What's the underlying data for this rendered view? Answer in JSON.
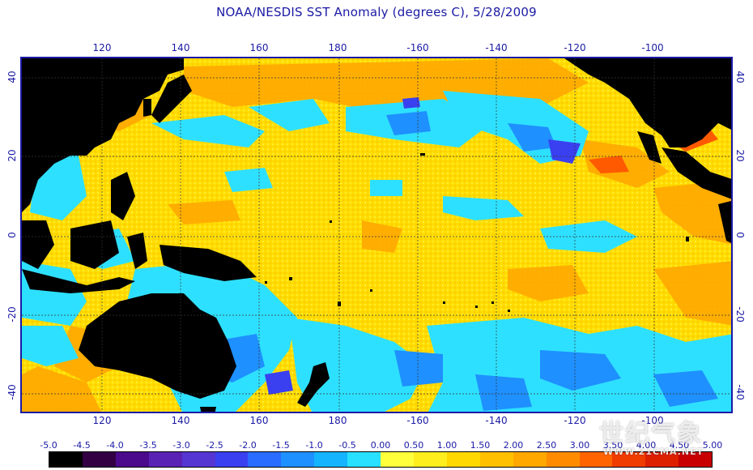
{
  "title": "NOAA/NESDIS SST Anomaly (degrees C), 5/28/2009",
  "map": {
    "lon_labels_top": [
      "120",
      "140",
      "160",
      "180",
      "-160",
      "-140",
      "-120",
      "-100"
    ],
    "lon_labels_bottom": [
      "120",
      "140",
      "160",
      "180",
      "-160",
      "-140",
      "-120",
      "-100"
    ],
    "lat_labels_left": [
      "40",
      "20",
      "0",
      "-20",
      "-40"
    ],
    "lat_labels_right": [
      "40",
      "20",
      "0",
      "-20",
      "-40"
    ]
  },
  "colorbar": {
    "labels": [
      "-5.0",
      "-4.5",
      "-4.0",
      "-3.5",
      "-3.0",
      "-2.5",
      "-2.0",
      "-1.5",
      "-1.0",
      "-0.5",
      "0.00",
      "0.50",
      "1.00",
      "1.50",
      "2.00",
      "2.50",
      "3.00",
      "3.50",
      "4.00",
      "4.50",
      "5.00"
    ],
    "colors": [
      "#000000",
      "#330044",
      "#4b0a8c",
      "#5a22b4",
      "#5636d2",
      "#3a40f0",
      "#2a6cff",
      "#1e90ff",
      "#14b4ff",
      "#28e0ff",
      "#ffff3c",
      "#ffee1e",
      "#ffd800",
      "#ffc000",
      "#ffa800",
      "#ff8c00",
      "#ff6400",
      "#f03c00",
      "#dc2000",
      "#c80000"
    ]
  },
  "watermark": {
    "text": "世纪气象",
    "url": "WWW.21CMA.NET"
  }
}
